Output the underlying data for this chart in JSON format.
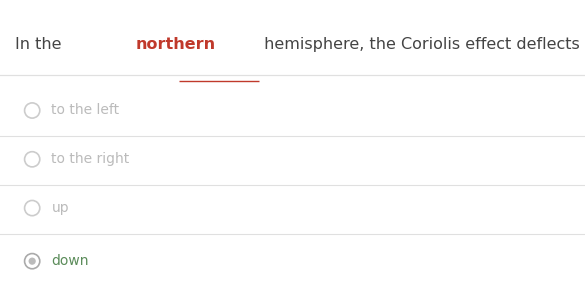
{
  "question_prefix": "In the ",
  "question_highlight": "northern",
  "question_suffix": " hemisphere, the Coriolis effect deflects moving air or water",
  "highlight_color": "#c0392b",
  "question_color": "#444444",
  "question_fontsize": 11.5,
  "options": [
    "to the left",
    "to the right",
    "up",
    "down"
  ],
  "selected_index": 3,
  "unselected_text_color": "#bbbbbb",
  "selected_text_color": "#5b8c5a",
  "separator_color": "#e0e0e0",
  "background_color": "#ffffff",
  "radio_unselected_edge": "#cccccc",
  "radio_selected_edge": "#aaaaaa",
  "radio_selected_fill": "#bbbbbb",
  "option_fontsize": 10.0,
  "fig_width": 5.85,
  "fig_height": 2.87,
  "dpi": 100
}
